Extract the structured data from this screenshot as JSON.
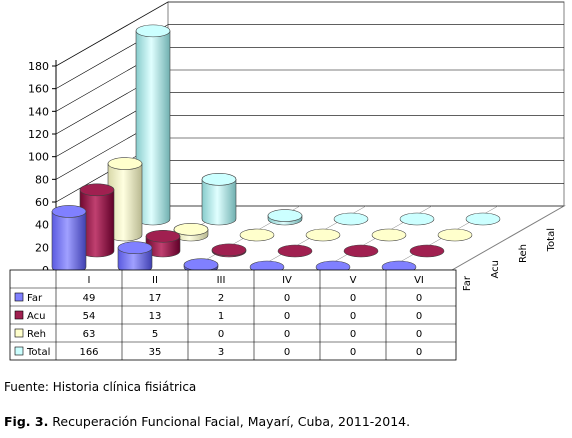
{
  "chart_data": {
    "type": "bar",
    "variant": "3d-cylinder-with-data-table",
    "categories": [
      "I",
      "II",
      "III",
      "IV",
      "V",
      "VI"
    ],
    "series": [
      {
        "name": "Far",
        "values": [
          49,
          17,
          2,
          0,
          0,
          0
        ],
        "color": "#8080ff"
      },
      {
        "name": "Acu",
        "values": [
          54,
          13,
          1,
          0,
          0,
          0
        ],
        "color": "#a02050"
      },
      {
        "name": "Reh",
        "values": [
          63,
          5,
          0,
          0,
          0,
          0
        ],
        "color": "#ffffcc"
      },
      {
        "name": "Total",
        "values": [
          166,
          35,
          3,
          0,
          0,
          0
        ],
        "color": "#ccffff"
      }
    ],
    "yticks": [
      "0",
      "20",
      "40",
      "60",
      "80",
      "100",
      "120",
      "140",
      "160",
      "180"
    ],
    "ylim": [
      0,
      180
    ],
    "grid": true,
    "legend": "data-table-left"
  },
  "captions": {
    "source": "Fuente: Historia clínica fisiátrica",
    "figure_label": "Fig. 3.",
    "figure_text": " Recuperación Funcional Facial, Mayarí, Cuba, 2011-2014."
  }
}
